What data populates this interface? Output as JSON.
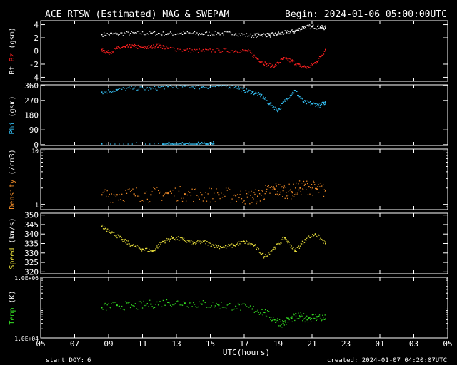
{
  "header": {
    "title": "ACE RTSW (Estimated) MAG & SWEPAM",
    "begin": "Begin: 2024-01-06 05:00:00UTC"
  },
  "footer": {
    "start_doy_label": "start DOY:",
    "start_doy": "6",
    "created": "created: 2024-01-07 04:20:07UTC",
    "xlabel": "UTC(hours)"
  },
  "x_axis": {
    "range_hours": [
      5,
      29
    ],
    "tick_labels": [
      "05",
      "07",
      "09",
      "11",
      "13",
      "15",
      "17",
      "19",
      "21",
      "23",
      "01",
      "03",
      "05"
    ],
    "tick_hours": [
      5,
      7,
      9,
      11,
      13,
      15,
      17,
      19,
      21,
      23,
      25,
      27,
      29
    ]
  },
  "colors": {
    "background": "#000000",
    "frame": "#ffffff",
    "bt": "#ffffff",
    "bz": "#ff2020",
    "phi": "#33bbee",
    "density": "#ee8a28",
    "speed": "#e6dc3a",
    "temp": "#33dd22"
  },
  "chart_data": [
    {
      "type": "scatter",
      "panel": "magnetic field",
      "ylabel_parts": [
        "Bt",
        "Bz",
        "(gsm)"
      ],
      "ylim": [
        -4.6,
        4.6
      ],
      "yticks": [
        4,
        2,
        0,
        -2,
        -4
      ],
      "ytick_labels": [
        "4",
        "2",
        "0",
        "-2",
        "-4"
      ],
      "zero_line": true,
      "series": [
        {
          "name": "Bt",
          "x": [
            8.6,
            9.5,
            10.5,
            11.5,
            12.5,
            13.5,
            14.5,
            15.5,
            16.5,
            17.5,
            18.0,
            18.5,
            19.0,
            19.5,
            20.0,
            20.5,
            21.0,
            21.5,
            21.8
          ],
          "y": [
            2.5,
            2.6,
            2.7,
            2.7,
            2.6,
            2.7,
            2.6,
            2.7,
            2.6,
            2.3,
            2.5,
            2.4,
            2.6,
            2.8,
            3.0,
            3.6,
            3.7,
            3.6,
            3.5
          ]
        },
        {
          "name": "Bz",
          "x": [
            8.6,
            9.0,
            9.5,
            10.0,
            10.5,
            11.0,
            11.5,
            12.0,
            12.5,
            13.5,
            14.5,
            15.5,
            16.5,
            17.2,
            17.8,
            18.3,
            18.8,
            19.3,
            19.8,
            20.3,
            20.8,
            21.3,
            21.8
          ],
          "y": [
            0.2,
            -0.3,
            0.4,
            0.6,
            0.7,
            0.5,
            0.6,
            0.8,
            0.4,
            0.1,
            0.0,
            0.1,
            0.0,
            0.0,
            -1.2,
            -2.0,
            -2.3,
            -1.2,
            -1.5,
            -2.3,
            -2.5,
            -1.6,
            0.2
          ]
        }
      ]
    },
    {
      "type": "scatter",
      "panel": "phi",
      "ylabel_parts": [
        "Phi",
        "(gsm)"
      ],
      "ylim": [
        -5,
        365
      ],
      "yticks": [
        360,
        270,
        180,
        90,
        0
      ],
      "ytick_labels": [
        "360",
        "270",
        "180",
        "90",
        "0"
      ],
      "series": [
        {
          "name": "Phi",
          "x": [
            8.6,
            9.5,
            10.5,
            11.5,
            12.5,
            13.5,
            14.5,
            15.5,
            16.5,
            17.0,
            17.5,
            18.0,
            18.5,
            19.0,
            19.5,
            20.0,
            20.5,
            21.0,
            21.5,
            21.8
          ],
          "y": [
            320,
            335,
            345,
            340,
            355,
            358,
            350,
            358,
            355,
            330,
            320,
            300,
            250,
            210,
            280,
            330,
            260,
            250,
            240,
            260
          ]
        },
        {
          "name": "Phi (low band)",
          "x": [
            8.6,
            12.2,
            12.8,
            13.5,
            14.2,
            14.8,
            15.2
          ],
          "y": [
            5,
            3,
            2,
            2,
            3,
            4,
            6
          ]
        }
      ]
    },
    {
      "type": "scatter",
      "panel": "density",
      "ylabel_parts": [
        "Density",
        "(/cm3)"
      ],
      "yscale": "log",
      "ylim": [
        0.8,
        10.5
      ],
      "yticks": [
        10,
        1
      ],
      "ytick_labels": [
        "10",
        "1"
      ],
      "series": [
        {
          "name": "Density",
          "x": [
            8.6,
            9.5,
            10.5,
            11.5,
            12.5,
            13.5,
            14.5,
            15.5,
            16.5,
            17.2,
            17.8,
            18.3,
            18.8,
            19.3,
            19.8,
            20.3,
            20.8,
            21.3,
            21.8
          ],
          "y": [
            1.5,
            1.5,
            1.55,
            1.5,
            1.6,
            1.55,
            1.5,
            1.5,
            1.45,
            1.35,
            1.4,
            1.7,
            1.9,
            1.8,
            1.7,
            2.0,
            2.1,
            1.9,
            1.8
          ]
        }
      ]
    },
    {
      "type": "scatter",
      "panel": "speed",
      "ylabel_parts": [
        "Speed",
        "(km/s)"
      ],
      "ylim": [
        319,
        351
      ],
      "yticks": [
        350,
        345,
        340,
        335,
        330,
        325,
        320
      ],
      "ytick_labels": [
        "350",
        "345",
        "340",
        "335",
        "330",
        "325",
        "320"
      ],
      "series": [
        {
          "name": "Speed",
          "x": [
            8.6,
            9.2,
            9.8,
            10.4,
            11.0,
            11.6,
            12.2,
            12.8,
            13.4,
            14.0,
            14.6,
            15.2,
            15.8,
            16.4,
            17.0,
            17.6,
            18.2,
            18.8,
            19.4,
            20.0,
            20.6,
            21.2,
            21.8
          ],
          "y": [
            344,
            341,
            337,
            334,
            332,
            331,
            336,
            338,
            337,
            335,
            336,
            334,
            333,
            334,
            336,
            334,
            328,
            333,
            338,
            331,
            337,
            340,
            335
          ]
        }
      ]
    },
    {
      "type": "scatter",
      "panel": "temperature",
      "ylabel_parts": [
        "Temp",
        "(K)"
      ],
      "yscale": "log",
      "ylim": [
        10000,
        1000000
      ],
      "yticks": [
        1000000,
        10000
      ],
      "ytick_labels": [
        "1.0E+06",
        "1.0E+04"
      ],
      "series": [
        {
          "name": "Temp",
          "x": [
            8.6,
            9.5,
            10.5,
            11.5,
            12.5,
            13.5,
            14.5,
            15.5,
            16.5,
            17.5,
            18.2,
            18.8,
            19.3,
            19.8,
            20.3,
            20.8,
            21.3,
            21.8
          ],
          "y": [
            100000,
            120000,
            110000,
            130000,
            150000,
            140000,
            130000,
            120000,
            110000,
            90000,
            70000,
            40000,
            30000,
            45000,
            50000,
            45000,
            50000,
            42000
          ]
        }
      ]
    }
  ]
}
